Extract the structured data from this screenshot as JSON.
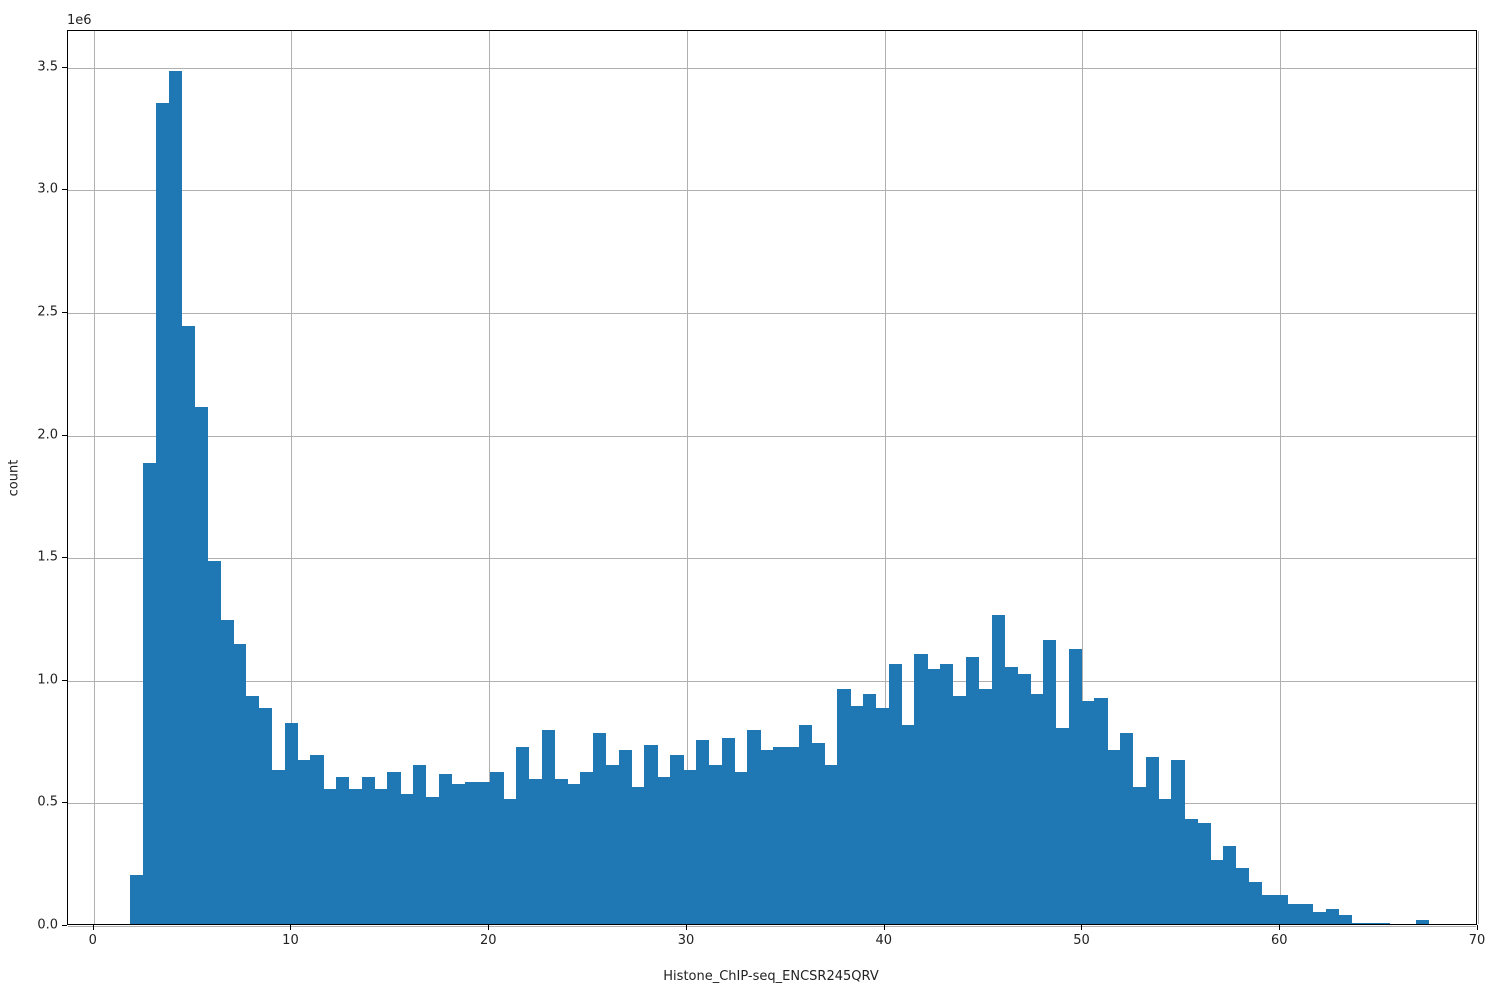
{
  "chart_data": {
    "type": "bar",
    "title": "",
    "xlabel": "Histone_ChIP-seq_ENCSR245QRV",
    "ylabel": "count",
    "y_offset_label": "1e6",
    "xlim": [
      -1.3,
      70
    ],
    "ylim": [
      0,
      3.65
    ],
    "x_ticks": [
      0,
      10,
      20,
      30,
      40,
      50,
      60,
      70
    ],
    "y_ticks": [
      "0.0",
      "0.5",
      "1.0",
      "1.5",
      "2.0",
      "2.5",
      "3.0",
      "3.5"
    ],
    "grid": true,
    "bin_start": 1.85,
    "bin_width": 0.65,
    "values": [
      0.2,
      1.88,
      3.35,
      3.48,
      2.44,
      2.11,
      1.48,
      1.24,
      1.14,
      0.93,
      0.88,
      0.63,
      0.82,
      0.67,
      0.69,
      0.55,
      0.6,
      0.55,
      0.6,
      0.55,
      0.62,
      0.53,
      0.65,
      0.52,
      0.61,
      0.57,
      0.58,
      0.58,
      0.62,
      0.51,
      0.72,
      0.59,
      0.79,
      0.59,
      0.57,
      0.62,
      0.78,
      0.65,
      0.71,
      0.56,
      0.73,
      0.6,
      0.69,
      0.63,
      0.75,
      0.65,
      0.76,
      0.62,
      0.79,
      0.71,
      0.72,
      0.72,
      0.81,
      0.74,
      0.65,
      0.96,
      0.89,
      0.94,
      0.88,
      1.06,
      0.81,
      1.1,
      1.04,
      1.06,
      0.93,
      1.09,
      0.96,
      1.26,
      1.05,
      1.02,
      0.94,
      1.16,
      0.8,
      1.12,
      0.91,
      0.92,
      0.71,
      0.78,
      0.56,
      0.68,
      0.51,
      0.67,
      0.43,
      0.41,
      0.26,
      0.32,
      0.23,
      0.17,
      0.12,
      0.12,
      0.08,
      0.08,
      0.05,
      0.06,
      0.035,
      0.005,
      0.005,
      0.005,
      0.0,
      0.0,
      0.015,
      0.0
    ]
  }
}
